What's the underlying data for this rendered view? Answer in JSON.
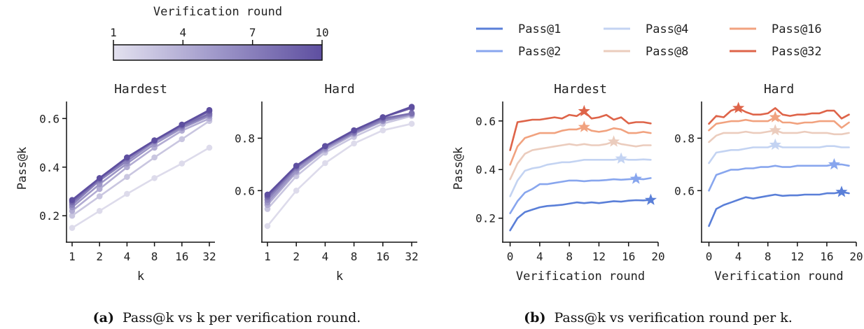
{
  "panel_a": {
    "colorbar": {
      "label": "Verification round",
      "ticks": [
        "1",
        "4",
        "7",
        "10"
      ]
    },
    "caption": {
      "tag": "(a)",
      "text": "Pass@k vs k per verification round."
    }
  },
  "panel_b": {
    "caption": {
      "tag": "(b)",
      "text": "Pass@k vs verification round per k."
    }
  },
  "chart_data": [
    {
      "type": "line",
      "title": "Hardest",
      "xlabel": "k",
      "ylabel": "Pass@k",
      "x": [
        "1",
        "2",
        "4",
        "8",
        "16",
        "32"
      ],
      "ylim": [
        0.12,
        0.67
      ],
      "yticks": [
        0.2,
        0.4,
        0.6
      ],
      "ytick_labels": [
        "0.2",
        "0.4",
        "0.6"
      ],
      "colorbar": "Verification round (1–10)",
      "series": [
        {
          "name": "1",
          "values": [
            0.15,
            0.22,
            0.29,
            0.355,
            0.415,
            0.48
          ],
          "color": "#dddbeb"
        },
        {
          "name": "2",
          "values": [
            0.2,
            0.28,
            0.36,
            0.44,
            0.515,
            0.59
          ],
          "color": "#c9c6e0"
        },
        {
          "name": "3",
          "values": [
            0.22,
            0.31,
            0.4,
            0.48,
            0.55,
            0.6
          ],
          "color": "#b2acd3"
        },
        {
          "name": "4",
          "values": [
            0.235,
            0.33,
            0.415,
            0.495,
            0.56,
            0.61
          ],
          "color": "#9d96c6"
        },
        {
          "name": "5",
          "values": [
            0.245,
            0.345,
            0.425,
            0.505,
            0.565,
            0.615
          ],
          "color": "#8b82bb"
        },
        {
          "name": "6",
          "values": [
            0.255,
            0.35,
            0.435,
            0.51,
            0.57,
            0.62
          ],
          "color": "#7b70b0"
        },
        {
          "name": "7",
          "values": [
            0.26,
            0.355,
            0.44,
            0.51,
            0.575,
            0.63
          ],
          "color": "#6f62a7"
        },
        {
          "name": "10",
          "values": [
            0.265,
            0.355,
            0.44,
            0.51,
            0.575,
            0.635
          ],
          "color": "#5e4fa0"
        }
      ]
    },
    {
      "type": "line",
      "title": "Hard",
      "xlabel": "k",
      "ylabel": "",
      "x": [
        "1",
        "2",
        "4",
        "8",
        "16",
        "32"
      ],
      "ylim": [
        0.43,
        0.94
      ],
      "yticks": [
        0.6,
        0.8
      ],
      "ytick_labels": [
        "0.6",
        "0.8"
      ],
      "colorbar": "Verification round (1–10)",
      "series": [
        {
          "name": "1",
          "values": [
            0.465,
            0.6,
            0.705,
            0.78,
            0.83,
            0.855
          ],
          "color": "#dddbeb"
        },
        {
          "name": "2",
          "values": [
            0.53,
            0.655,
            0.745,
            0.805,
            0.855,
            0.885
          ],
          "color": "#c9c6e0"
        },
        {
          "name": "3",
          "values": [
            0.545,
            0.67,
            0.755,
            0.815,
            0.865,
            0.89
          ],
          "color": "#b2acd3"
        },
        {
          "name": "4",
          "values": [
            0.555,
            0.675,
            0.76,
            0.82,
            0.865,
            0.89
          ],
          "color": "#9d96c6"
        },
        {
          "name": "5",
          "values": [
            0.565,
            0.685,
            0.765,
            0.82,
            0.87,
            0.895
          ],
          "color": "#8b82bb"
        },
        {
          "name": "6",
          "values": [
            0.575,
            0.69,
            0.77,
            0.825,
            0.875,
            0.895
          ],
          "color": "#7b70b0"
        },
        {
          "name": "7",
          "values": [
            0.58,
            0.695,
            0.77,
            0.83,
            0.88,
            0.915
          ],
          "color": "#6f62a7"
        },
        {
          "name": "10",
          "values": [
            0.585,
            0.695,
            0.77,
            0.83,
            0.88,
            0.92
          ],
          "color": "#5e4fa0"
        }
      ]
    },
    {
      "type": "line",
      "title": "Hardest",
      "xlabel": "Verification round",
      "ylabel": "Pass@k",
      "xlim": [
        -1,
        20
      ],
      "xticks": [
        0,
        4,
        8,
        12,
        16,
        20
      ],
      "ylim": [
        0.13,
        0.68
      ],
      "yticks": [
        0.2,
        0.4,
        0.6
      ],
      "ytick_labels": [
        "0.2",
        "0.4",
        "0.6"
      ],
      "x": [
        0,
        1,
        2,
        3,
        4,
        5,
        6,
        7,
        8,
        9,
        10,
        11,
        12,
        13,
        14,
        15,
        16,
        17,
        18,
        19
      ],
      "legend": "top",
      "series": [
        {
          "name": "Pass@1",
          "color": "#5a7fd8",
          "best_round": 19,
          "values": [
            0.15,
            0.2,
            0.225,
            0.235,
            0.245,
            0.25,
            0.252,
            0.255,
            0.26,
            0.265,
            0.262,
            0.265,
            0.262,
            0.266,
            0.27,
            0.268,
            0.272,
            0.274,
            0.273,
            0.275
          ]
        },
        {
          "name": "Pass@2",
          "color": "#88a6ee",
          "best_round": 17,
          "values": [
            0.22,
            0.27,
            0.305,
            0.32,
            0.34,
            0.34,
            0.345,
            0.35,
            0.355,
            0.355,
            0.352,
            0.355,
            0.355,
            0.357,
            0.36,
            0.358,
            0.36,
            0.362,
            0.36,
            0.365
          ]
        },
        {
          "name": "Pass@4",
          "color": "#c3d3f2",
          "best_round": 15,
          "values": [
            0.29,
            0.355,
            0.395,
            0.405,
            0.41,
            0.42,
            0.425,
            0.43,
            0.43,
            0.435,
            0.44,
            0.44,
            0.44,
            0.44,
            0.44,
            0.445,
            0.44,
            0.44,
            0.442,
            0.44
          ]
        },
        {
          "name": "Pass@8",
          "color": "#ebccbd",
          "best_round": 14,
          "values": [
            0.36,
            0.425,
            0.465,
            0.48,
            0.485,
            0.49,
            0.495,
            0.5,
            0.505,
            0.5,
            0.505,
            0.5,
            0.5,
            0.505,
            0.515,
            0.505,
            0.5,
            0.495,
            0.5,
            0.5
          ]
        },
        {
          "name": "Pass@16",
          "color": "#f1a27f",
          "best_round": 10,
          "values": [
            0.42,
            0.495,
            0.53,
            0.54,
            0.55,
            0.55,
            0.55,
            0.56,
            0.565,
            0.565,
            0.575,
            0.56,
            0.555,
            0.56,
            0.57,
            0.565,
            0.55,
            0.55,
            0.555,
            0.55
          ]
        },
        {
          "name": "Pass@32",
          "color": "#de6449",
          "best_round": 10,
          "values": [
            0.48,
            0.595,
            0.6,
            0.605,
            0.605,
            0.61,
            0.615,
            0.61,
            0.625,
            0.62,
            0.64,
            0.61,
            0.615,
            0.625,
            0.605,
            0.615,
            0.59,
            0.595,
            0.595,
            0.59
          ]
        }
      ]
    },
    {
      "type": "line",
      "title": "Hard",
      "xlabel": "Verification round",
      "ylabel": "",
      "xlim": [
        -1,
        20
      ],
      "xticks": [
        0,
        4,
        8,
        12,
        16,
        20
      ],
      "ylim": [
        0.43,
        0.94
      ],
      "yticks": [
        0.6,
        0.8
      ],
      "ytick_labels": [
        "0.6",
        "0.8"
      ],
      "x": [
        0,
        1,
        2,
        3,
        4,
        5,
        6,
        7,
        8,
        9,
        10,
        11,
        12,
        13,
        14,
        15,
        16,
        17,
        18,
        19
      ],
      "legend": "top",
      "series": [
        {
          "name": "Pass@1",
          "color": "#5a7fd8",
          "best_round": 18,
          "values": [
            0.465,
            0.53,
            0.545,
            0.555,
            0.565,
            0.575,
            0.57,
            0.575,
            0.58,
            0.585,
            0.58,
            0.582,
            0.582,
            0.585,
            0.585,
            0.585,
            0.59,
            0.59,
            0.595,
            0.59
          ]
        },
        {
          "name": "Pass@2",
          "color": "#88a6ee",
          "best_round": 17,
          "values": [
            0.6,
            0.66,
            0.67,
            0.68,
            0.68,
            0.685,
            0.685,
            0.69,
            0.69,
            0.695,
            0.69,
            0.69,
            0.695,
            0.695,
            0.695,
            0.695,
            0.695,
            0.7,
            0.7,
            0.695
          ]
        },
        {
          "name": "Pass@4",
          "color": "#c3d3f2",
          "best_round": 9,
          "values": [
            0.705,
            0.745,
            0.75,
            0.755,
            0.755,
            0.76,
            0.765,
            0.765,
            0.765,
            0.775,
            0.765,
            0.765,
            0.765,
            0.765,
            0.765,
            0.765,
            0.77,
            0.77,
            0.765,
            0.765
          ]
        },
        {
          "name": "Pass@8",
          "color": "#ebccbd",
          "best_round": 9,
          "values": [
            0.785,
            0.81,
            0.82,
            0.82,
            0.82,
            0.825,
            0.82,
            0.82,
            0.825,
            0.83,
            0.82,
            0.82,
            0.82,
            0.825,
            0.82,
            0.82,
            0.82,
            0.815,
            0.815,
            0.82
          ]
        },
        {
          "name": "Pass@16",
          "color": "#f1a27f",
          "best_round": 9,
          "values": [
            0.83,
            0.855,
            0.86,
            0.865,
            0.865,
            0.87,
            0.865,
            0.865,
            0.865,
            0.88,
            0.86,
            0.86,
            0.855,
            0.86,
            0.86,
            0.865,
            0.865,
            0.865,
            0.84,
            0.86
          ]
        },
        {
          "name": "Pass@32",
          "color": "#de6449",
          "best_round": 4,
          "values": [
            0.855,
            0.885,
            0.88,
            0.905,
            0.915,
            0.9,
            0.89,
            0.89,
            0.895,
            0.915,
            0.89,
            0.885,
            0.89,
            0.89,
            0.895,
            0.895,
            0.905,
            0.905,
            0.875,
            0.89
          ]
        }
      ]
    }
  ]
}
